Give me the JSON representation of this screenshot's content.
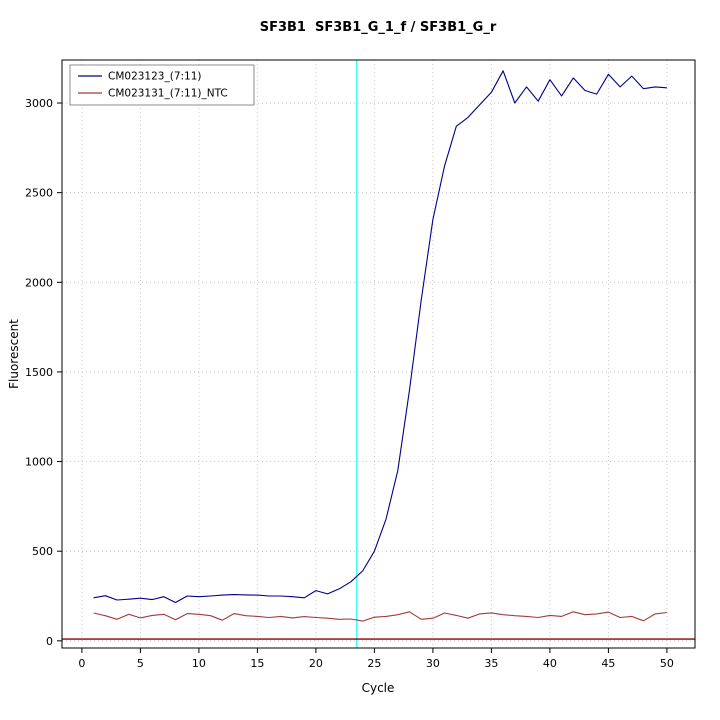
{
  "page": {
    "background": "#ffffff"
  },
  "chart_data": {
    "type": "line",
    "title": "SF3B1  SF3B1_G_1_f / SF3B1_G_r",
    "xlabel": "Cycle",
    "ylabel": "Fluorescent",
    "xlim": [
      -1.7,
      52.4
    ],
    "ylim": [
      -40,
      3240
    ],
    "xticks": [
      0,
      5,
      10,
      15,
      20,
      25,
      30,
      35,
      40,
      45,
      50
    ],
    "yticks": [
      0,
      500,
      1000,
      1500,
      2000,
      2500,
      3000
    ],
    "grid": true,
    "grid_color": "#c8c8c8",
    "box_color": "#000000",
    "threshold_line": {
      "orientation": "vertical",
      "x": 23.5,
      "color": "#00ffff"
    },
    "baseline": {
      "orientation": "horizontal",
      "y": 10,
      "color": "#8b0000"
    },
    "x_start": 1,
    "series": [
      {
        "name": "CM023123_(7:11)",
        "color": "#00008b",
        "values": [
          240,
          252,
          228,
          232,
          238,
          230,
          246,
          214,
          250,
          246,
          250,
          255,
          258,
          256,
          255,
          250,
          250,
          246,
          240,
          280,
          262,
          290,
          330,
          390,
          500,
          680,
          950,
          1400,
          1900,
          2350,
          2650,
          2870,
          2920,
          2990,
          3060,
          3180,
          3000,
          3090,
          3010,
          3130,
          3040,
          3140,
          3070,
          3050,
          3160,
          3090,
          3150,
          3080,
          3090,
          3085
        ]
      },
      {
        "name": "CM023131_(7:11)_NTC",
        "color": "#a03c3c",
        "values": [
          155,
          140,
          120,
          148,
          128,
          142,
          148,
          118,
          152,
          148,
          140,
          115,
          152,
          140,
          136,
          130,
          136,
          128,
          135,
          130,
          126,
          120,
          122,
          110,
          132,
          136,
          146,
          162,
          120,
          126,
          155,
          142,
          126,
          150,
          156,
          146,
          140,
          136,
          130,
          142,
          136,
          162,
          146,
          150,
          160,
          130,
          136,
          112,
          150,
          158
        ]
      }
    ],
    "legend_position": "top-left",
    "legend_border_color": "#8c8c8c"
  }
}
